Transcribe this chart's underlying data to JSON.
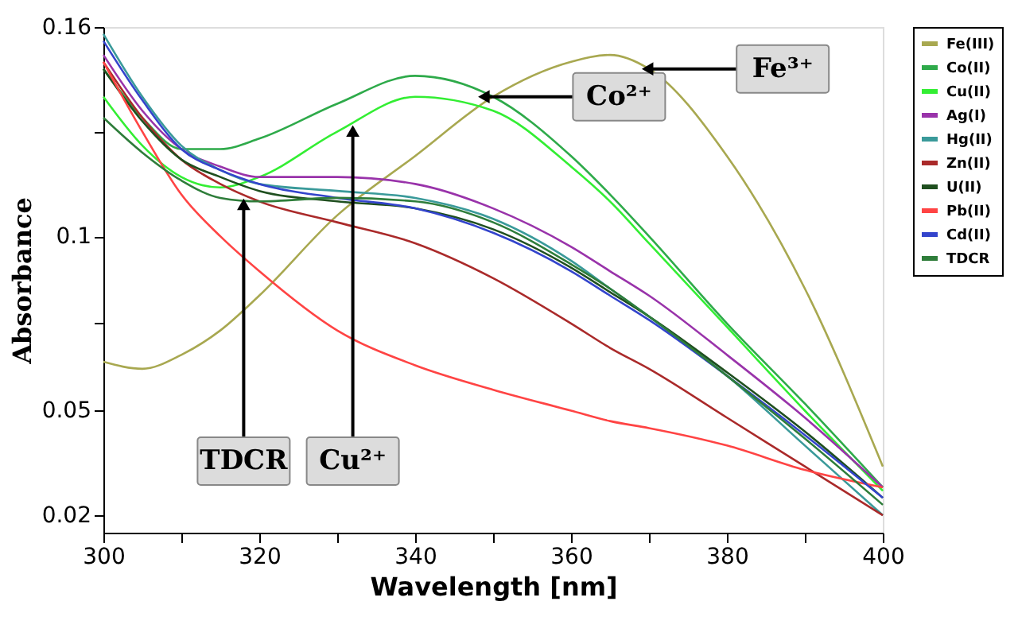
{
  "chart_data": {
    "type": "line",
    "xlabel": "Wavelength [nm]",
    "ylabel": "Absorbance",
    "xlim": [
      300,
      400
    ],
    "ylim": [
      0.015,
      0.16
    ],
    "xticks": [
      300,
      {
        "value": 310,
        "label": null
      },
      320,
      {
        "value": 330,
        "label": null
      },
      340,
      {
        "value": 350,
        "label": null
      },
      360,
      {
        "value": 370,
        "label": null
      },
      380,
      {
        "value": 390,
        "label": null
      },
      400
    ],
    "yticks": [
      0.02,
      0.05,
      {
        "value": 0.075,
        "label": null
      },
      0.1,
      {
        "value": 0.13,
        "label": null
      },
      0.16
    ],
    "grid": false,
    "legend": "right",
    "marker": "none",
    "line_style": "solid",
    "x": [
      300,
      305,
      310,
      315,
      320,
      330,
      340,
      350,
      360,
      365,
      370,
      380,
      390,
      400
    ],
    "series": [
      {
        "name": "Fe(III)",
        "color": "#a8a850",
        "values": [
          0.064,
          0.062,
          0.066,
          0.073,
          0.083,
          0.106,
          0.123,
          0.14,
          0.15,
          0.152,
          0.148,
          0.123,
          0.085,
          0.034
        ]
      },
      {
        "name": "Co(II)",
        "color": "#2eaa4a",
        "values": [
          0.148,
          0.134,
          0.125,
          0.125,
          0.128,
          0.138,
          0.146,
          0.14,
          0.123,
          0.112,
          0.1,
          0.075,
          0.052,
          0.028
        ]
      },
      {
        "name": "Cu(II)",
        "color": "#33ee33",
        "values": [
          0.14,
          0.126,
          0.117,
          0.114,
          0.117,
          0.13,
          0.14,
          0.136,
          0.12,
          0.11,
          0.098,
          0.074,
          0.05,
          0.027
        ]
      },
      {
        "name": "Ag(I)",
        "color": "#9933aa",
        "values": [
          0.152,
          0.136,
          0.125,
          0.12,
          0.117,
          0.117,
          0.115,
          0.108,
          0.097,
          0.09,
          0.083,
          0.066,
          0.048,
          0.028
        ]
      },
      {
        "name": "Hg(II)",
        "color": "#3a9a9a",
        "values": [
          0.158,
          0.14,
          0.126,
          0.119,
          0.115,
          0.113,
          0.111,
          0.105,
          0.093,
          0.085,
          0.077,
          0.06,
          0.04,
          0.02
        ]
      },
      {
        "name": "Zn(II)",
        "color": "#aa2a2a",
        "values": [
          0.15,
          0.134,
          0.122,
          0.115,
          0.11,
          0.104,
          0.098,
          0.088,
          0.075,
          0.068,
          0.062,
          0.048,
          0.034,
          0.02
        ]
      },
      {
        "name": "U(II)",
        "color": "#1f4f1f",
        "values": [
          0.148,
          0.133,
          0.122,
          0.117,
          0.113,
          0.11,
          0.108,
          0.102,
          0.091,
          0.084,
          0.077,
          0.061,
          0.044,
          0.025
        ]
      },
      {
        "name": "Pb(II)",
        "color": "#ff4444",
        "values": [
          0.15,
          0.13,
          0.112,
          0.1,
          0.09,
          0.073,
          0.063,
          0.056,
          0.05,
          0.047,
          0.045,
          0.04,
          0.033,
          0.028
        ]
      },
      {
        "name": "Cd(II)",
        "color": "#3344cc",
        "values": [
          0.156,
          0.139,
          0.125,
          0.119,
          0.115,
          0.111,
          0.108,
          0.101,
          0.09,
          0.083,
          0.076,
          0.06,
          0.043,
          0.025
        ]
      },
      {
        "name": "TDCR",
        "color": "#2e7d3a",
        "values": [
          0.134,
          0.124,
          0.116,
          0.111,
          0.11,
          0.111,
          0.11,
          0.104,
          0.092,
          0.085,
          0.077,
          0.06,
          0.042,
          0.023
        ]
      }
    ],
    "annotations": [
      {
        "text": "TDCR",
        "x": 318,
        "y": 0.111
      },
      {
        "text": "Cu²⁺",
        "x": 332,
        "y": 0.132
      },
      {
        "text": "Co²⁺",
        "x": 348,
        "y": 0.14
      },
      {
        "text": "Fe³⁺",
        "x": 369,
        "y": 0.148
      }
    ]
  }
}
